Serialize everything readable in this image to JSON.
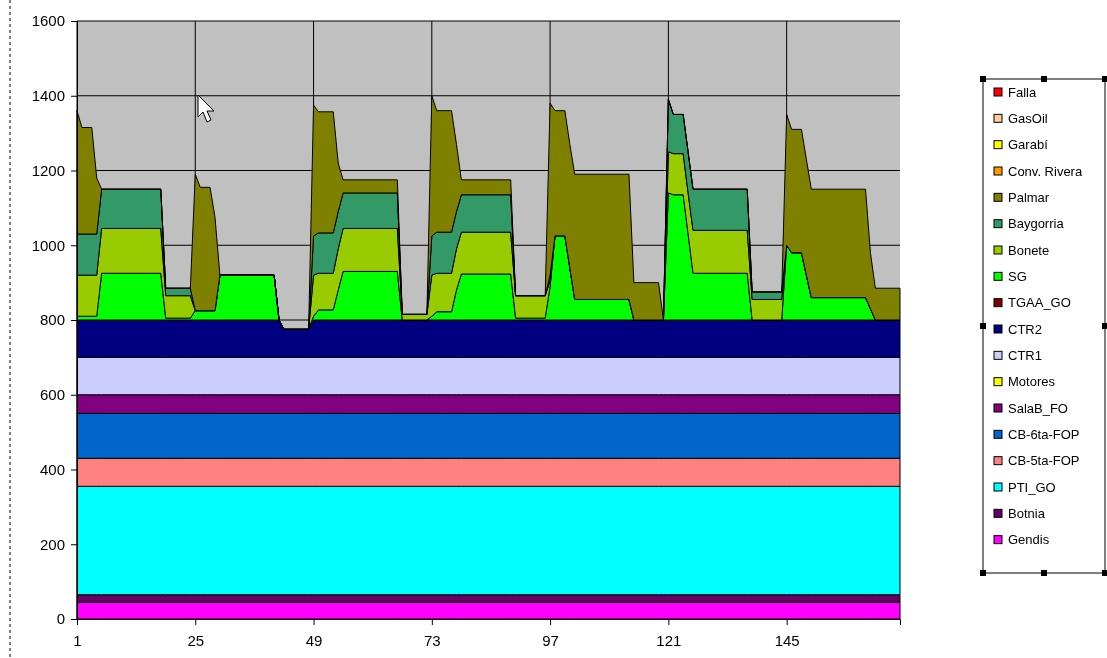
{
  "chart_data": {
    "type": "area",
    "stacked": true,
    "legend": "right",
    "grid": true,
    "x": [
      1,
      2,
      4,
      5,
      6,
      18,
      19,
      24,
      25,
      26,
      28,
      29,
      30,
      41,
      42,
      43,
      48,
      49,
      50,
      53,
      54,
      55,
      66,
      67,
      72,
      73,
      74,
      77,
      78,
      79,
      89,
      90,
      96,
      97,
      98,
      100,
      101,
      102,
      113,
      114,
      119,
      120,
      121,
      122,
      124,
      125,
      126,
      137,
      138,
      144,
      145,
      146,
      148,
      149,
      150,
      161,
      162,
      163,
      168
    ],
    "xlim": [
      1,
      168
    ],
    "xticks": [
      1,
      25,
      49,
      73,
      97,
      121,
      145
    ],
    "ylim": [
      0,
      1600
    ],
    "yticks": [
      0,
      200,
      400,
      600,
      800,
      1000,
      1200,
      1400,
      1600
    ],
    "series": [
      {
        "name": "Gendis",
        "color": "#ff00ff",
        "values": [
          45,
          45,
          45,
          45,
          45,
          45,
          45,
          45,
          45,
          45,
          45,
          45,
          45,
          45,
          45,
          45,
          45,
          45,
          45,
          45,
          45,
          45,
          45,
          45,
          45,
          45,
          45,
          45,
          45,
          45,
          45,
          45,
          45,
          45,
          45,
          45,
          45,
          45,
          45,
          45,
          45,
          45,
          45,
          45,
          45,
          45,
          45,
          45,
          45,
          45,
          45,
          45,
          45,
          45,
          45,
          45,
          45,
          45,
          45
        ]
      },
      {
        "name": "Botnia",
        "color": "#660066",
        "values": [
          20,
          20,
          20,
          20,
          20,
          20,
          20,
          20,
          20,
          20,
          20,
          20,
          20,
          20,
          20,
          20,
          20,
          20,
          20,
          20,
          20,
          20,
          20,
          20,
          20,
          20,
          20,
          20,
          20,
          20,
          20,
          20,
          20,
          20,
          20,
          20,
          20,
          20,
          20,
          20,
          20,
          20,
          20,
          20,
          20,
          20,
          20,
          20,
          20,
          20,
          20,
          20,
          20,
          20,
          20,
          20,
          20,
          20,
          20
        ]
      },
      {
        "name": "PTI_GO",
        "color": "#00ffff",
        "values": [
          290,
          290,
          290,
          290,
          290,
          290,
          290,
          290,
          290,
          290,
          290,
          290,
          290,
          290,
          290,
          290,
          290,
          290,
          290,
          290,
          290,
          290,
          290,
          290,
          290,
          290,
          290,
          290,
          290,
          290,
          290,
          290,
          290,
          290,
          290,
          290,
          290,
          290,
          290,
          290,
          290,
          290,
          290,
          290,
          290,
          290,
          290,
          290,
          290,
          290,
          290,
          290,
          290,
          290,
          290,
          290,
          290,
          290,
          290
        ]
      },
      {
        "name": "CB-5ta-FOP",
        "color": "#ff8080",
        "values": [
          75,
          75,
          75,
          75,
          75,
          75,
          75,
          75,
          75,
          75,
          75,
          75,
          75,
          75,
          75,
          75,
          75,
          75,
          75,
          75,
          75,
          75,
          75,
          75,
          75,
          75,
          75,
          75,
          75,
          75,
          75,
          75,
          75,
          75,
          75,
          75,
          75,
          75,
          75,
          75,
          75,
          75,
          75,
          75,
          75,
          75,
          75,
          75,
          75,
          75,
          75,
          75,
          75,
          75,
          75,
          75,
          75,
          75,
          75
        ]
      },
      {
        "name": "CB-6ta-FOP",
        "color": "#0066cc",
        "values": [
          120,
          120,
          120,
          120,
          120,
          120,
          120,
          120,
          120,
          120,
          120,
          120,
          120,
          120,
          120,
          120,
          120,
          120,
          120,
          120,
          120,
          120,
          120,
          120,
          120,
          120,
          120,
          120,
          120,
          120,
          120,
          120,
          120,
          120,
          120,
          120,
          120,
          120,
          120,
          120,
          120,
          120,
          120,
          120,
          120,
          120,
          120,
          120,
          120,
          120,
          120,
          120,
          120,
          120,
          120,
          120,
          120,
          120,
          120
        ]
      },
      {
        "name": "SalaB_FO",
        "color": "#800080",
        "values": [
          50,
          50,
          50,
          50,
          50,
          50,
          50,
          50,
          50,
          50,
          50,
          50,
          50,
          50,
          50,
          50,
          50,
          50,
          50,
          50,
          50,
          50,
          50,
          50,
          50,
          50,
          50,
          50,
          50,
          50,
          50,
          50,
          50,
          50,
          50,
          50,
          50,
          50,
          50,
          50,
          50,
          50,
          50,
          50,
          50,
          50,
          50,
          50,
          50,
          50,
          50,
          50,
          50,
          50,
          50,
          50,
          50,
          50,
          50
        ]
      },
      {
        "name": "Motores",
        "color": "#ffff00",
        "values": [
          null,
          null,
          null,
          null,
          null,
          null,
          null,
          null,
          null,
          null,
          null,
          null,
          null,
          null,
          null,
          null,
          null,
          null,
          null,
          null,
          null,
          null,
          null,
          null,
          null,
          null,
          null,
          null,
          null,
          null,
          null,
          null,
          null,
          null,
          null,
          null,
          null,
          null,
          null,
          null,
          null,
          null,
          null,
          null,
          null,
          null,
          null,
          null,
          null,
          null,
          null,
          null,
          null,
          null,
          null,
          null,
          null,
          null,
          null
        ]
      },
      {
        "name": "CTR1",
        "color": "#ccccff",
        "values": [
          100,
          100,
          100,
          100,
          100,
          100,
          100,
          100,
          100,
          100,
          100,
          100,
          100,
          100,
          100,
          100,
          100,
          100,
          100,
          100,
          100,
          100,
          100,
          100,
          100,
          100,
          100,
          100,
          100,
          100,
          100,
          100,
          100,
          100,
          100,
          100,
          100,
          100,
          100,
          100,
          100,
          100,
          100,
          100,
          100,
          100,
          100,
          100,
          100,
          100,
          100,
          100,
          100,
          100,
          100,
          100,
          100,
          100,
          100
        ]
      },
      {
        "name": "CTR2",
        "color": "#000080",
        "values": [
          100,
          100,
          100,
          100,
          100,
          100,
          100,
          100,
          100,
          100,
          100,
          100,
          100,
          100,
          100,
          75,
          75,
          100,
          100,
          100,
          100,
          100,
          100,
          100,
          100,
          100,
          100,
          100,
          100,
          100,
          100,
          100,
          100,
          100,
          100,
          100,
          100,
          100,
          100,
          100,
          100,
          100,
          100,
          100,
          100,
          100,
          100,
          100,
          100,
          100,
          100,
          100,
          100,
          100,
          100,
          100,
          100,
          100,
          100
        ]
      },
      {
        "name": "TGAA_GO",
        "color": "#800000",
        "values": [
          null,
          null,
          null,
          null,
          null,
          null,
          null,
          null,
          null,
          null,
          null,
          null,
          null,
          null,
          null,
          null,
          null,
          null,
          null,
          null,
          null,
          null,
          null,
          null,
          null,
          null,
          null,
          null,
          null,
          null,
          null,
          null,
          null,
          null,
          null,
          null,
          null,
          null,
          null,
          null,
          null,
          null,
          null,
          null,
          null,
          null,
          null,
          null,
          null,
          null,
          null,
          null,
          null,
          null,
          null,
          null,
          null,
          null,
          null
        ]
      },
      {
        "name": "SG",
        "color": "#00ff00",
        "values": [
          10,
          10,
          10,
          10,
          125,
          125,
          5,
          5,
          25,
          25,
          25,
          25,
          120,
          120,
          0,
          0,
          0,
          10,
          27,
          27,
          80,
          130,
          130,
          0,
          0,
          10,
          22,
          22,
          80,
          123,
          123,
          5,
          5,
          90,
          225,
          225,
          140,
          55,
          55,
          0,
          0,
          0,
          340,
          335,
          335,
          230,
          125,
          125,
          0,
          0,
          200,
          180,
          180,
          120,
          60,
          60,
          30,
          0,
          0
        ]
      },
      {
        "name": "Bonete",
        "color": "#99cc00",
        "values": [
          110,
          110,
          110,
          110,
          120,
          120,
          60,
          60,
          0,
          0,
          0,
          0,
          0,
          0,
          0,
          0,
          0,
          110,
          98,
          98,
          110,
          115,
          115,
          15,
          15,
          110,
          103,
          103,
          110,
          112,
          112,
          60,
          60,
          15,
          0,
          0,
          0,
          0,
          0,
          0,
          0,
          0,
          110,
          110,
          110,
          110,
          115,
          115,
          55,
          55,
          0,
          0,
          0,
          0,
          0,
          0,
          0,
          0,
          0
        ]
      },
      {
        "name": "Baygorria",
        "color": "#339966",
        "values": [
          110,
          110,
          110,
          110,
          105,
          105,
          20,
          20,
          0,
          0,
          0,
          0,
          0,
          0,
          0,
          0,
          0,
          105,
          108,
          108,
          100,
          95,
          95,
          0,
          0,
          105,
          110,
          110,
          100,
          100,
          100,
          0,
          0,
          15,
          0,
          0,
          0,
          0,
          0,
          0,
          0,
          0,
          140,
          105,
          105,
          110,
          110,
          110,
          20,
          20,
          0,
          0,
          0,
          0,
          0,
          0,
          0,
          0,
          0
        ]
      },
      {
        "name": "Palmar",
        "color": "#808000",
        "values": [
          330,
          285,
          285,
          150,
          0,
          0,
          0,
          0,
          365,
          330,
          330,
          250,
          0,
          0,
          0,
          0,
          0,
          350,
          324,
          324,
          130,
          35,
          35,
          0,
          0,
          375,
          325,
          325,
          180,
          40,
          40,
          0,
          0,
          460,
          335,
          335,
          330,
          335,
          335,
          100,
          100,
          0,
          0,
          0,
          0,
          0,
          0,
          0,
          0,
          0,
          350,
          330,
          330,
          310,
          290,
          290,
          150,
          85,
          85
        ]
      },
      {
        "name": "Conv. Rivera",
        "color": "#ff9900",
        "values": [
          null,
          null,
          null,
          null,
          null,
          null,
          null,
          null,
          null,
          null,
          null,
          null,
          null,
          null,
          null,
          null,
          null,
          null,
          null,
          null,
          null,
          null,
          null,
          null,
          null,
          null,
          null,
          null,
          null,
          null,
          null,
          null,
          null,
          null,
          null,
          null,
          null,
          null,
          null,
          null,
          null,
          null,
          null,
          null,
          null,
          null,
          null,
          null,
          null,
          null,
          null,
          null,
          null,
          null,
          null,
          null,
          null,
          null,
          null
        ]
      },
      {
        "name": "Garabí",
        "color": "#ffff00",
        "values": [
          null,
          null,
          null,
          null,
          null,
          null,
          null,
          null,
          null,
          null,
          null,
          null,
          null,
          null,
          null,
          null,
          null,
          null,
          null,
          null,
          null,
          null,
          null,
          null,
          null,
          null,
          null,
          null,
          null,
          null,
          null,
          null,
          null,
          null,
          null,
          null,
          null,
          null,
          null,
          null,
          null,
          null,
          null,
          null,
          null,
          null,
          null,
          null,
          null,
          null,
          null,
          null,
          null,
          null,
          null,
          null,
          null,
          null,
          null
        ]
      },
      {
        "name": "GasOil",
        "color": "#ffcc99",
        "values": [
          null,
          null,
          null,
          null,
          null,
          null,
          null,
          null,
          null,
          null,
          null,
          null,
          null,
          null,
          null,
          null,
          null,
          null,
          null,
          null,
          null,
          null,
          null,
          null,
          null,
          null,
          null,
          null,
          null,
          null,
          null,
          null,
          null,
          null,
          null,
          null,
          null,
          null,
          null,
          null,
          null,
          null,
          null,
          null,
          null,
          null,
          null,
          null,
          null,
          null,
          null,
          null,
          null,
          null,
          null,
          null,
          null,
          null,
          null
        ]
      },
      {
        "name": "Falla",
        "color": "#ff0000",
        "values": [
          null,
          null,
          null,
          null,
          null,
          null,
          null,
          null,
          null,
          null,
          null,
          null,
          null,
          null,
          null,
          null,
          null,
          null,
          null,
          null,
          null,
          null,
          null,
          null,
          null,
          null,
          null,
          null,
          null,
          null,
          null,
          null,
          null,
          null,
          null,
          null,
          null,
          null,
          null,
          null,
          null,
          null,
          null,
          null,
          null,
          null,
          null,
          null,
          null,
          null,
          null,
          null,
          null,
          null,
          null,
          null,
          null,
          null,
          null
        ]
      }
    ]
  }
}
